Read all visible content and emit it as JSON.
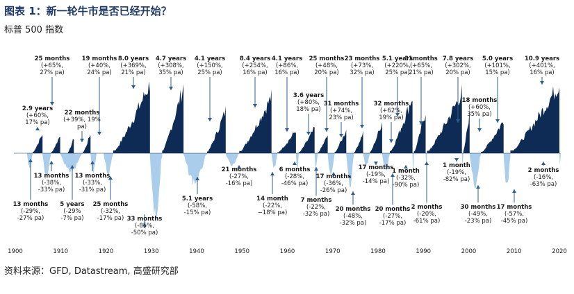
{
  "title": "图表 1：新一轮牛市是否已经开始？",
  "subtitle": "标普 500 指数",
  "source": "资料来源：GFD, Datastream, 高盛研究部",
  "colors": {
    "bull": "#0d2b55",
    "bear": "#a9cdea",
    "arrow": "#2e5d8f",
    "title": "#1f3b66"
  },
  "chart_data": {
    "type": "area",
    "x_ticks": [
      "1900",
      "1910",
      "1920",
      "1930",
      "1940",
      "1950",
      "1960",
      "1970",
      "1980",
      "1990",
      "2000",
      "2010",
      "2020"
    ],
    "xlim": [
      1900,
      2020
    ],
    "bull_markets": [
      {
        "start": 1903.8,
        "end": 1906.0,
        "peak": 0.28,
        "label": [
          "25 months",
          "(+65%,",
          "27% pa)"
        ]
      },
      {
        "start": 1907.9,
        "end": 1909.9,
        "peak": 0.26,
        "label": [
          "2.9 years",
          "(+60%,",
          "17% pa)"
        ]
      },
      {
        "start": 1911.6,
        "end": 1912.9,
        "peak": 0.22,
        "label": [
          "22 months",
          "(+39%, 19%",
          "pa)"
        ]
      },
      {
        "start": 1914.9,
        "end": 1916.6,
        "peak": 0.28,
        "label": [
          "19 months",
          "(+40%,",
          "24% pa)"
        ]
      },
      {
        "start": 1921.6,
        "end": 1929.7,
        "peak": 1.0,
        "label": [
          "8.0 years",
          "(+369%,",
          "21% pa)"
        ]
      },
      {
        "start": 1932.4,
        "end": 1937.1,
        "peak": 0.97,
        "label": [
          "4.7 years",
          "(+308%,",
          "35% pa)"
        ]
      },
      {
        "start": 1942.3,
        "end": 1946.4,
        "peak": 0.62,
        "label": [
          "4.1  years",
          "(+150%,",
          "25% pa)"
        ]
      },
      {
        "start": 1949.4,
        "end": 1956.5,
        "peak": 0.82,
        "label": [
          "8.4 years",
          "(+254%,",
          "16% pa)"
        ]
      },
      {
        "start": 1957.8,
        "end": 1961.9,
        "peak": 0.33,
        "label": [
          "4.1 years",
          "(+86%,",
          "16% pa)"
        ]
      },
      {
        "start": 1962.5,
        "end": 1966.0,
        "peak": 0.36,
        "label": [
          "3.6 years",
          "(+80%,",
          "18% pa)"
        ]
      },
      {
        "start": 1966.7,
        "end": 1968.9,
        "peak": 0.26,
        "label": [
          "25 months",
          "(+48%,",
          "20% pa)"
        ]
      },
      {
        "start": 1970.4,
        "end": 1973.0,
        "peak": 0.34,
        "label": [
          "31 months",
          "(+74%,",
          "23% pa)"
        ]
      },
      {
        "start": 1974.7,
        "end": 1976.7,
        "peak": 0.3,
        "label": [
          "23 months",
          "(+73%,",
          "32% pa)"
        ]
      },
      {
        "start": 1978.2,
        "end": 1980.9,
        "peak": 0.45,
        "label": [
          "32 months",
          "(+62%,",
          "19% pa)"
        ]
      },
      {
        "start": 1982.6,
        "end": 1987.6,
        "peak": 0.82,
        "label": [
          "5.1 years",
          "(+220%,",
          "25% pa)"
        ]
      },
      {
        "start": 1987.9,
        "end": 1990.5,
        "peak": 0.6,
        "label": [
          "31months",
          "(+65%,",
          "21% pa)"
        ]
      },
      {
        "start": 1990.8,
        "end": 1998.5,
        "peak": 0.88,
        "label": [
          "7.8 years",
          "(+302%,",
          "20% pa)"
        ]
      },
      {
        "start": 1998.8,
        "end": 2000.2,
        "peak": 0.6,
        "label": [
          "18 months",
          "(+60%,",
          "35% pa)"
        ]
      },
      {
        "start": 2002.7,
        "end": 2007.7,
        "peak": 0.47,
        "label": [
          "5.0 years",
          "(+101%,",
          "15% pa)"
        ]
      },
      {
        "start": 2009.2,
        "end": 2020.0,
        "peak": 1.0,
        "label": [
          "10.9 years",
          "(+401%,",
          "16% pa)"
        ]
      }
    ],
    "bear_markets": [
      {
        "start": 1902.6,
        "end": 1903.8,
        "trough": 0.27,
        "label": [
          "13 months",
          "(-29%,",
          "-27% pa)"
        ]
      },
      {
        "start": 1906.0,
        "end": 1907.9,
        "trough": 0.35,
        "label": [
          "13 months",
          "(-38%,",
          "-33% pa)"
        ]
      },
      {
        "start": 1909.9,
        "end": 1914.9,
        "trough": 0.28,
        "label": [
          "5 years",
          "(-29%",
          "-7% pa)"
        ]
      },
      {
        "start": 1916.6,
        "end": 1917.9,
        "trough": 0.31,
        "label": [
          "13 months",
          "(-33%,",
          "-31% pa)"
        ]
      },
      {
        "start": 1919.5,
        "end": 1921.6,
        "trough": 0.3,
        "label": [
          "25 months",
          "(-32%,",
          "-17% pa)"
        ]
      },
      {
        "start": 1929.7,
        "end": 1932.4,
        "trough": 1.0,
        "label": [
          "33 months",
          "(-85%,",
          "-50% pa)"
        ]
      },
      {
        "start": 1937.1,
        "end": 1942.3,
        "trough": 0.45,
        "label": [
          "5.1 years",
          "(-58%,",
          "-15% pa)"
        ]
      },
      {
        "start": 1946.4,
        "end": 1949.4,
        "trough": 0.2,
        "label": [
          "21 months",
          "(-27%,",
          "-16% pa)"
        ]
      },
      {
        "start": 1956.5,
        "end": 1957.8,
        "trough": 0.22,
        "label": [
          "14 month",
          "(-22%,",
          "−18% pa)"
        ]
      },
      {
        "start": 1961.9,
        "end": 1962.5,
        "trough": 0.28,
        "label": [
          "6 months",
          "(-28%,",
          "-46% pa)"
        ]
      },
      {
        "start": 1966.0,
        "end": 1966.7,
        "trough": 0.22,
        "label": [
          "7 months",
          "(-22%,",
          "-32% pa)"
        ]
      },
      {
        "start": 1968.9,
        "end": 1970.4,
        "trough": 0.36,
        "label": [
          "17 months",
          "(-36%,",
          "-26% pa)"
        ]
      },
      {
        "start": 1973.0,
        "end": 1974.7,
        "trough": 0.48,
        "label": [
          "20 months",
          "(-48%,",
          "-32% pa)"
        ]
      },
      {
        "start": 1976.7,
        "end": 1978.2,
        "trough": 0.19,
        "label": [
          "17 months",
          "(-19%,",
          "-14% pa)"
        ]
      },
      {
        "start": 1980.9,
        "end": 1982.6,
        "trough": 0.27,
        "label": [
          "20 months",
          "(-27%,",
          "-17% pa)"
        ]
      },
      {
        "start": 1987.6,
        "end": 1987.9,
        "trough": 0.32,
        "label": [
          "1 month",
          "(-32%,",
          "-90% pa)"
        ]
      },
      {
        "start": 1990.5,
        "end": 1990.8,
        "trough": 0.2,
        "label": [
          "2 months",
          "(-20%,",
          "-61% pa)"
        ]
      },
      {
        "start": 1998.5,
        "end": 1998.8,
        "trough": 0.19,
        "label": [
          "1 month",
          "(-19%,",
          "-82% pa)"
        ]
      },
      {
        "start": 2000.2,
        "end": 2002.7,
        "trough": 0.49,
        "label": [
          "30 months",
          "(-49%,",
          "-23% pa)"
        ]
      },
      {
        "start": 2007.7,
        "end": 2009.2,
        "trough": 0.57,
        "label": [
          "17 months",
          "(-57%,",
          "-45% pa)"
        ]
      },
      {
        "start": 2020.0,
        "end": 2020.3,
        "trough": 0.16,
        "label": [
          "2 months",
          "(-16%,",
          "-63% pa)"
        ]
      }
    ]
  }
}
